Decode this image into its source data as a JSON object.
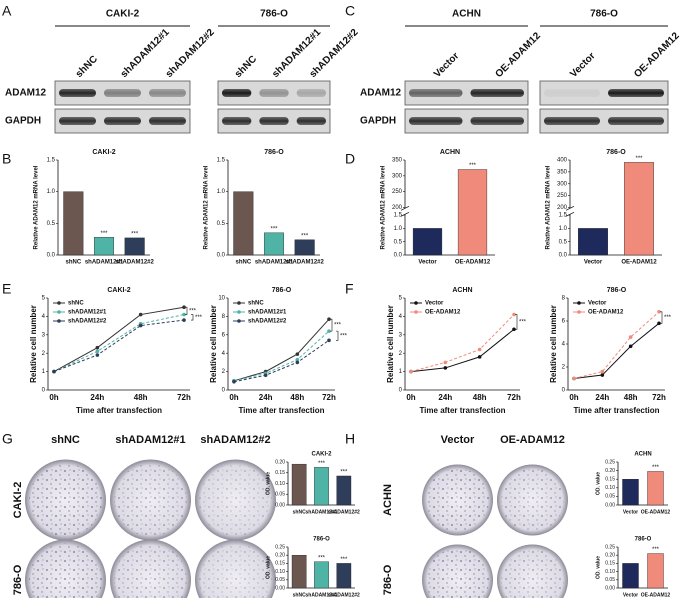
{
  "panel_letters": [
    "A",
    "B",
    "C",
    "D",
    "E",
    "F",
    "G",
    "H"
  ],
  "blots": [
    {
      "rows": [
        "ADAM12",
        "GAPDH"
      ],
      "groups": [
        {
          "title": "CAKI-2",
          "lanes": [
            "shNC",
            "shADAM12#1",
            "shADAM12#2"
          ]
        },
        {
          "title": "786-O",
          "lanes": [
            "shNC",
            "shADAM12#1",
            "shADAM12#2"
          ]
        }
      ]
    },
    {
      "rows": [
        "ADAM12",
        "GAPDH"
      ],
      "groups": [
        {
          "title": "ACHN",
          "lanes": [
            "Vector",
            "OE-ADAM12"
          ]
        },
        {
          "title": "786-O",
          "lanes": [
            "Vector",
            "OE-ADAM12"
          ]
        }
      ]
    }
  ],
  "plates": [
    {
      "columns": [
        "shNC",
        "shADAM12#1",
        "shADAM12#2"
      ],
      "rows": [
        "CAKI-2",
        "786-O"
      ]
    },
    {
      "columns": [
        "Vector",
        "OE-ADAM12"
      ],
      "rows": [
        "ACHN",
        "786-O"
      ]
    }
  ],
  "chart_data": [
    {
      "type": "bar",
      "title": "CAKI-2",
      "ylabel": "Relative ADAM12 mRNA level",
      "categories": [
        "shNC",
        "shADAM12#1",
        "shADAM12#2"
      ],
      "values": [
        1.0,
        0.28,
        0.27
      ],
      "colors": [
        "#6b5650",
        "#4fb3a5",
        "#2e3d5a"
      ],
      "significance": [
        null,
        "***",
        "***"
      ],
      "ylim": [
        0,
        1.5
      ],
      "yticks": [
        {
          "value": 0,
          "label": "0.0"
        },
        0.5,
        {
          "value": 1,
          "label": "1.0"
        },
        1.5
      ]
    },
    {
      "type": "bar",
      "title": "786-O",
      "ylabel": "Relative ADAM12 mRNA level",
      "categories": [
        "shNC",
        "shADAM12#1",
        "shADAM12#2"
      ],
      "values": [
        1.0,
        0.35,
        0.24
      ],
      "colors": [
        "#6b5650",
        "#4fb3a5",
        "#2e3d5a"
      ],
      "significance": [
        null,
        "***",
        "***"
      ],
      "ylim": [
        0,
        1.5
      ],
      "yticks": [
        {
          "value": 0,
          "label": "0.0"
        },
        0.5,
        {
          "value": 1,
          "label": "1.0"
        },
        1.5
      ]
    },
    {
      "type": "bar",
      "title": "ACHN",
      "ylabel": "Relative ADAM12 mRNA level",
      "categories": [
        "Vector",
        "OE-ADAM12"
      ],
      "values": [
        1.0,
        320
      ],
      "colors": [
        "#1f2a5c",
        "#f08a7a"
      ],
      "significance": [
        null,
        "***"
      ],
      "ylim": [
        0,
        350
      ],
      "axis_break": [
        1.5,
        200
      ],
      "yticks": [
        {
          "value": 0,
          "label": "0.0"
        },
        0.5,
        {
          "value": 1,
          "label": "1.0"
        },
        1.5,
        200,
        250,
        300,
        350
      ]
    },
    {
      "type": "bar",
      "title": "786-O",
      "ylabel": "Relative ADAM12 mRNA level",
      "categories": [
        "Vector",
        "OE-ADAM12"
      ],
      "values": [
        1.0,
        390
      ],
      "colors": [
        "#1f2a5c",
        "#f08a7a"
      ],
      "significance": [
        null,
        "***"
      ],
      "ylim": [
        0,
        400
      ],
      "axis_break": [
        1.5,
        200
      ],
      "yticks": [
        {
          "value": 0,
          "label": "0.0"
        },
        0.5,
        {
          "value": 1,
          "label": "1.0"
        },
        1.5,
        200,
        250,
        300,
        350,
        400
      ]
    },
    {
      "type": "line",
      "title": "CAKI-2",
      "xlabel": "Time after transfection",
      "ylabel": "Relative cell number",
      "categories": [
        "0h",
        "24h",
        "48h",
        "72h"
      ],
      "series": [
        {
          "name": "shNC",
          "color": "#333333",
          "values": [
            1.0,
            2.3,
            4.1,
            4.5
          ]
        },
        {
          "name": "shADAM12#1",
          "color": "#4fb3a5",
          "values": [
            1.0,
            2.1,
            3.6,
            4.1
          ]
        },
        {
          "name": "shADAM12#2",
          "color": "#2e3d5a",
          "values": [
            1.0,
            1.9,
            3.5,
            3.8
          ]
        }
      ],
      "annotations": [
        "***",
        "***"
      ],
      "ylim": [
        0,
        5
      ],
      "yticks": [
        0,
        1,
        2,
        3,
        4,
        5
      ]
    },
    {
      "type": "line",
      "title": "786-O",
      "xlabel": "Time after transfection",
      "ylabel": "Relative cell number",
      "categories": [
        "0h",
        "24h",
        "48h",
        "72h"
      ],
      "series": [
        {
          "name": "shNC",
          "color": "#333333",
          "values": [
            1.0,
            2.0,
            3.9,
            7.7
          ]
        },
        {
          "name": "shADAM12#1",
          "color": "#4fb3a5",
          "values": [
            1.0,
            1.8,
            3.3,
            6.4
          ]
        },
        {
          "name": "shADAM12#2",
          "color": "#2e3d5a",
          "values": [
            0.9,
            1.6,
            3.0,
            5.4
          ]
        }
      ],
      "annotations": [
        "***",
        "***"
      ],
      "ylim": [
        0,
        10
      ],
      "yticks": [
        0,
        2,
        4,
        6,
        8,
        10
      ]
    },
    {
      "type": "line",
      "title": "ACHN",
      "xlabel": "Time after transfection",
      "ylabel": "Relative cell number",
      "categories": [
        "0h",
        "24h",
        "48h",
        "72h"
      ],
      "series": [
        {
          "name": "Vector",
          "color": "#111111",
          "values": [
            1.0,
            1.2,
            1.8,
            3.3
          ]
        },
        {
          "name": "OE-ADAM12",
          "color": "#f08a7a",
          "values": [
            1.0,
            1.5,
            2.2,
            4.1
          ]
        }
      ],
      "annotations": [
        "***"
      ],
      "ylim": [
        0,
        5
      ],
      "yticks": [
        0,
        1,
        2,
        3,
        4,
        5
      ]
    },
    {
      "type": "line",
      "title": "786-O",
      "xlabel": "Time after transfection",
      "ylabel": "Relative cell number",
      "categories": [
        "0h",
        "24h",
        "48h",
        "72h"
      ],
      "series": [
        {
          "name": "Vector",
          "color": "#111111",
          "values": [
            1.0,
            1.3,
            3.8,
            5.8
          ]
        },
        {
          "name": "OE-ADAM12",
          "color": "#f08a7a",
          "values": [
            1.0,
            1.6,
            4.6,
            6.8
          ]
        }
      ],
      "annotations": [
        "***"
      ],
      "ylim": [
        0,
        8
      ],
      "yticks": [
        0,
        2,
        4,
        6,
        8
      ]
    },
    {
      "type": "bar",
      "title": "CAKI-2",
      "ylabel": "OD. value",
      "categories": [
        "shNC",
        "shADAM12#1",
        "shADAM12#2"
      ],
      "values": [
        0.19,
        0.175,
        0.135
      ],
      "colors": [
        "#6b5650",
        "#4fb3a5",
        "#2e3d5a"
      ],
      "significance": [
        null,
        "***",
        "***"
      ],
      "ylim": [
        0,
        0.2
      ],
      "yticks": [
        {
          "value": 0,
          "label": "0.00"
        },
        0.05,
        {
          "value": 0.1,
          "label": "0.10"
        },
        0.15,
        {
          "value": 0.2,
          "label": "0.20"
        }
      ]
    },
    {
      "type": "bar",
      "title": "786-O",
      "ylabel": "OD. value",
      "categories": [
        "shNC",
        "shADAM12#1",
        "shADAM12#2"
      ],
      "values": [
        0.2,
        0.16,
        0.15
      ],
      "colors": [
        "#6b5650",
        "#4fb3a5",
        "#2e3d5a"
      ],
      "significance": [
        null,
        "***",
        "***"
      ],
      "ylim": [
        0,
        0.25
      ],
      "yticks": [
        {
          "value": 0,
          "label": "0.00"
        },
        0.05,
        {
          "value": 0.1,
          "label": "0.10"
        },
        0.15,
        {
          "value": 0.2,
          "label": "0.20"
        },
        0.25
      ]
    },
    {
      "type": "bar",
      "title": "ACHN",
      "ylabel": "OD. value",
      "categories": [
        "Vector",
        "OE-ADAM12"
      ],
      "values": [
        0.15,
        0.195
      ],
      "colors": [
        "#1f2a5c",
        "#f08a7a"
      ],
      "significance": [
        null,
        "***"
      ],
      "ylim": [
        0,
        0.25
      ],
      "yticks": [
        {
          "value": 0,
          "label": "0.00"
        },
        0.05,
        {
          "value": 0.1,
          "label": "0.10"
        },
        0.15,
        {
          "value": 0.2,
          "label": "0.20"
        },
        0.25
      ]
    },
    {
      "type": "bar",
      "title": "786-O",
      "ylabel": "OD. value",
      "categories": [
        "Vector",
        "OE-ADAM12"
      ],
      "values": [
        0.15,
        0.21
      ],
      "colors": [
        "#1f2a5c",
        "#f08a7a"
      ],
      "significance": [
        null,
        "***"
      ],
      "ylim": [
        0,
        0.25
      ],
      "yticks": [
        {
          "value": 0,
          "label": "0.00"
        },
        0.05,
        {
          "value": 0.1,
          "label": "0.10"
        },
        0.15,
        {
          "value": 0.2,
          "label": "0.20"
        },
        0.25
      ]
    }
  ]
}
